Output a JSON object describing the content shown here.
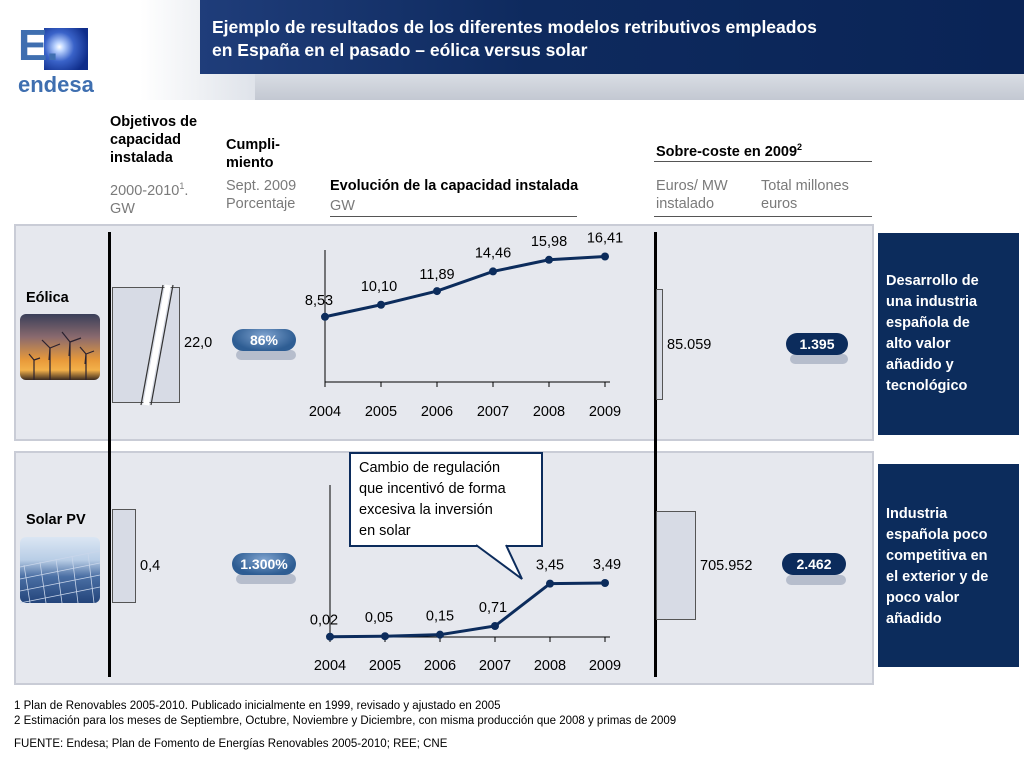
{
  "header": {
    "title_line1": "Ejemplo de resultados de los diferentes modelos retributivos empleados",
    "title_line2": "en España en el pasado – eólica versus solar",
    "logo_letter": "E.",
    "logo_name": "endesa"
  },
  "columns": {
    "objetivos_l1": "Objetivos de",
    "objetivos_l2": "capacidad",
    "objetivos_l3": "instalada",
    "objetivos_sub1": "2000-2010",
    "objetivos_sub1_sup": "1",
    "objetivos_sub1_end": ".",
    "objetivos_sub2": "GW",
    "cumpli_l1": "Cumpli-",
    "cumpli_l2": "miento",
    "cumpli_sub1": "Sept. 2009",
    "cumpli_sub2": "Porcentaje",
    "evolucion": "Evolución de la capacidad instalada",
    "evolucion_sub": "GW",
    "sobrecoste": "Sobre-coste en 2009",
    "sobrecoste_sup": "2",
    "euros_mw_l1": "Euros/ MW",
    "euros_mw_l2": "instalado",
    "total_l1": "Total millones",
    "total_l2": "euros"
  },
  "rows": {
    "eolica": {
      "label": "Eólica",
      "objetivo": "22,0",
      "cumplimiento": "86%",
      "euros_mw": "85.059",
      "total": "1.395",
      "desc_lines": [
        "Desarrollo de",
        "una industria",
        "española de",
        "alto valor",
        "añadido y",
        "tecnológico"
      ]
    },
    "solar": {
      "label": "Solar PV",
      "objetivo": "0,4",
      "cumplimiento": "1.300%",
      "euros_mw": "705.952",
      "total": "2.462",
      "desc_lines": [
        "Industria",
        "española poco",
        "competitiva en",
        "el exterior y de",
        "poco valor",
        "añadido"
      ]
    }
  },
  "callout": {
    "lines": [
      "Cambio de regulación",
      "que incentivó de forma",
      "excesiva la inversión",
      "en solar"
    ]
  },
  "chart_data": [
    {
      "type": "line",
      "x": [
        "2004",
        "2005",
        "2006",
        "2007",
        "2008",
        "2009"
      ],
      "series": [
        {
          "values": [
            8.53,
            10.1,
            11.89,
            14.46,
            15.98,
            16.41
          ],
          "labels": [
            "8,53",
            "10,10",
            "11,89",
            "14,46",
            "15,98",
            "16,41"
          ]
        }
      ],
      "ylim": [
        0,
        17
      ]
    },
    {
      "type": "line",
      "x": [
        "2004",
        "2005",
        "2006",
        "2007",
        "2008",
        "2009"
      ],
      "series": [
        {
          "values": [
            0.02,
            0.05,
            0.15,
            0.71,
            3.45,
            3.49
          ],
          "labels": [
            "0,02",
            "0,05",
            "0,15",
            "0,71",
            "3,45",
            "3,49"
          ]
        }
      ],
      "ylim": [
        0,
        5.3
      ]
    }
  ],
  "footnotes": {
    "note1": "1 Plan de Renovables 2005-2010. Publicado inicialmente en 1999, revisado y ajustado en 2005",
    "note2": "2 Estimación para los meses de Septiembre, Octubre, Noviembre y Diciembre, con misma producción que 2008 y primas de 2009",
    "source": "FUENTE: Endesa; Plan de Fomento de Energías Renovables 2005-2010; REE; CNE"
  },
  "colors": {
    "navy": "#0c2c5c",
    "line": "#0c2c5c",
    "pill": "#2f5f95"
  }
}
